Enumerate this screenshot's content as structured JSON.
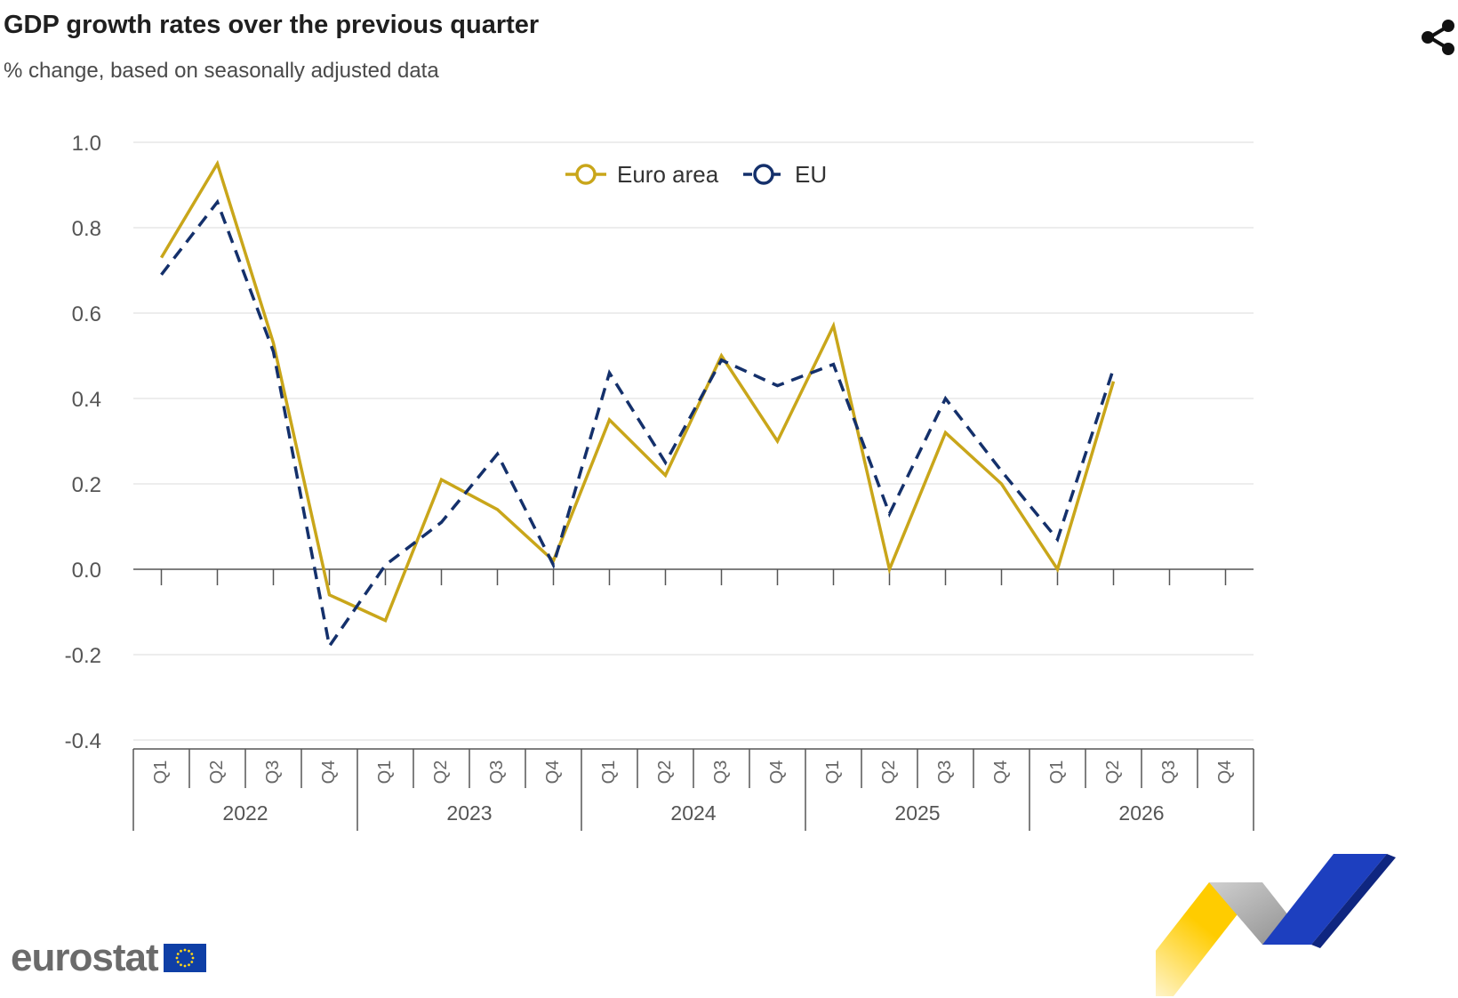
{
  "header": {
    "title": "GDP growth rates over the previous quarter",
    "subtitle": "% change, based on seasonally adjusted data"
  },
  "toolbar": {
    "share_icon": "share-icon"
  },
  "logo": {
    "text": "eurostat"
  },
  "chart_data": {
    "type": "line",
    "title": "GDP growth rates over the previous quarter",
    "subtitle": "% change, based on seasonally adjusted data",
    "xlabel": "",
    "ylabel": "",
    "ylim": [
      -0.4,
      1.0
    ],
    "yticks": [
      "1.0",
      "0.8",
      "0.6",
      "0.4",
      "0.2",
      "0.0",
      "-0.2",
      "-0.4"
    ],
    "grid": true,
    "legend_position": "top-center",
    "years": [
      "2022",
      "2023",
      "2024",
      "2025",
      "2026"
    ],
    "quarters": [
      "Q1",
      "Q2",
      "Q3",
      "Q4"
    ],
    "categories": [
      "2022 Q1",
      "2022 Q2",
      "2022 Q3",
      "2022 Q4",
      "2023 Q1",
      "2023 Q2",
      "2023 Q3",
      "2023 Q4",
      "2024 Q1",
      "2024 Q2",
      "2024 Q3",
      "2024 Q4",
      "2025 Q1",
      "2025 Q2",
      "2025 Q3",
      "2025 Q4",
      "2026 Q1",
      "2026 Q2",
      "2026 Q3",
      "2026 Q4"
    ],
    "series": [
      {
        "name": "Euro area",
        "color": "#c9a61a",
        "dash": false,
        "values": [
          0.73,
          0.95,
          0.53,
          -0.06,
          -0.12,
          0.21,
          0.14,
          0.02,
          0.35,
          0.22,
          0.5,
          0.3,
          0.57,
          0.0,
          0.32,
          0.2,
          0.0,
          0.44,
          null,
          null
        ]
      },
      {
        "name": "EU",
        "color": "#14306b",
        "dash": true,
        "values": [
          0.69,
          0.86,
          0.51,
          -0.18,
          0.01,
          0.11,
          0.27,
          0.01,
          0.46,
          0.25,
          0.49,
          0.43,
          0.48,
          0.13,
          0.4,
          0.23,
          0.07,
          0.47,
          null,
          null
        ]
      }
    ]
  }
}
